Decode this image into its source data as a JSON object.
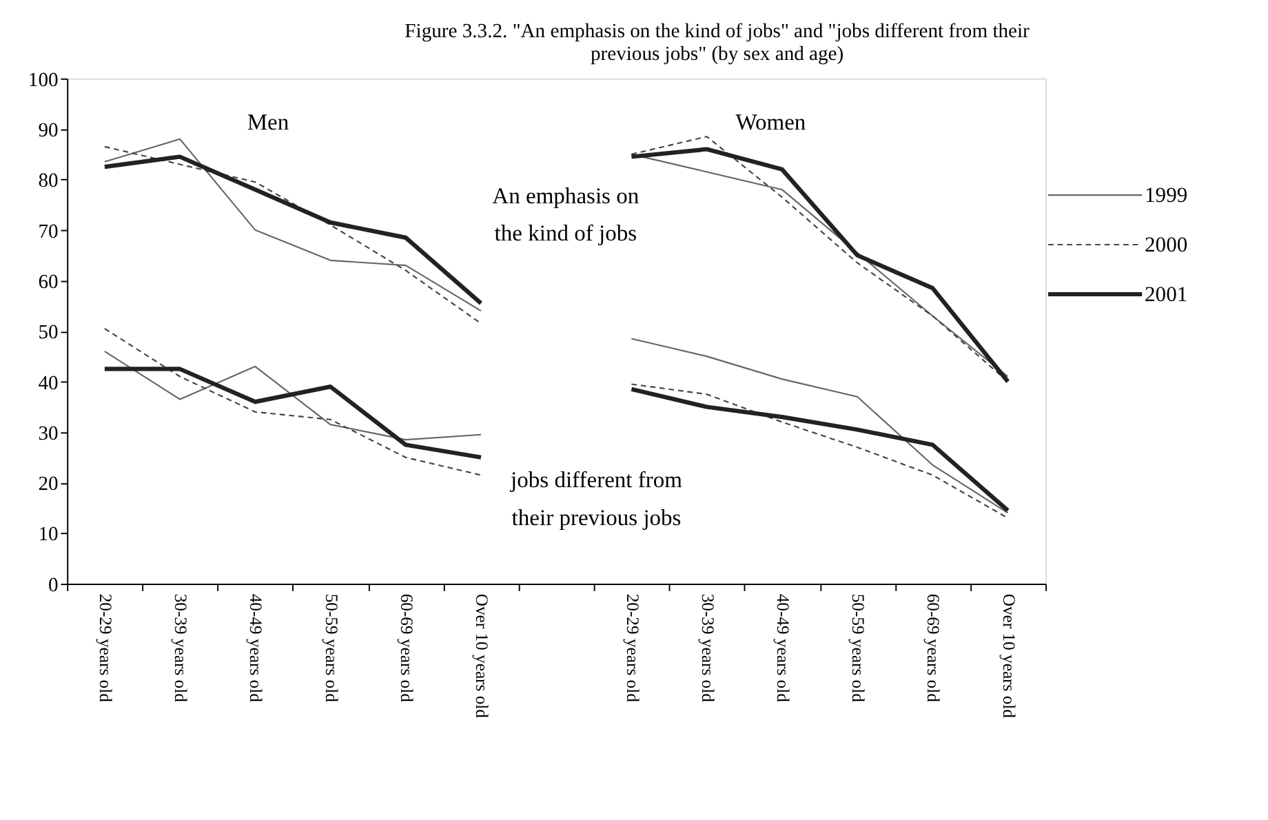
{
  "chart_data": {
    "type": "line",
    "title": "Figure 3.3.2.  \"An emphasis on the kind of jobs\" and \"jobs different from their\nprevious jobs\" (by sex and age)",
    "categories": [
      "20-29 years old",
      "30-39 years old",
      "40-49 years old",
      "50-59 years old",
      "60-69 years old",
      "Over 10 years old",
      null,
      "20-29 years old",
      "30-39 years old",
      "40-49 years old",
      "50-59 years old",
      "60-69 years old",
      "Over 10 years old"
    ],
    "series": [
      {
        "name": "1999",
        "color": "#666666",
        "line_style": "solid",
        "values": [
          83.5,
          88,
          70,
          64,
          63,
          54,
          null,
          85,
          81.5,
          78,
          65.5,
          53,
          41
        ]
      },
      {
        "name": "2000",
        "color": "#444444",
        "line_style": "dashed",
        "values": [
          86.5,
          83,
          79.5,
          71,
          62,
          51.5,
          null,
          85,
          88.5,
          76.5,
          63.5,
          53,
          40
        ]
      },
      {
        "name": "2001",
        "color": "#222222",
        "line_style": "solid",
        "values": [
          82.5,
          84.5,
          78,
          71.5,
          68.5,
          55.5,
          null,
          84.5,
          86,
          82,
          65,
          58.5,
          40
        ]
      },
      {
        "color": "#666666",
        "line_style": "solid",
        "values": [
          46,
          36.5,
          43,
          31.5,
          28.5,
          29.5,
          null,
          48.5,
          45,
          40.5,
          37,
          23.5,
          14
        ]
      },
      {
        "color": "#444444",
        "line_style": "dashed",
        "values": [
          50.5,
          41,
          34,
          32.5,
          25,
          21.5,
          null,
          39.5,
          37.5,
          32,
          27,
          21.5,
          13
        ]
      },
      {
        "color": "#222222",
        "line_style": "solid",
        "values": [
          42.5,
          42.5,
          36,
          39,
          27.5,
          25,
          null,
          38.5,
          35,
          33,
          30.5,
          27.5,
          14.5
        ]
      }
    ],
    "ylim": [
      0,
      100
    ],
    "yticks": [
      0,
      10,
      20,
      30,
      40,
      50,
      60,
      70,
      80,
      90,
      100
    ],
    "grid": false,
    "legend": "right",
    "marker": "none",
    "annotations": [
      "Men",
      "Women",
      "An emphasis on\nthe kind of jobs",
      "jobs different from\ntheir previous jobs"
    ]
  }
}
